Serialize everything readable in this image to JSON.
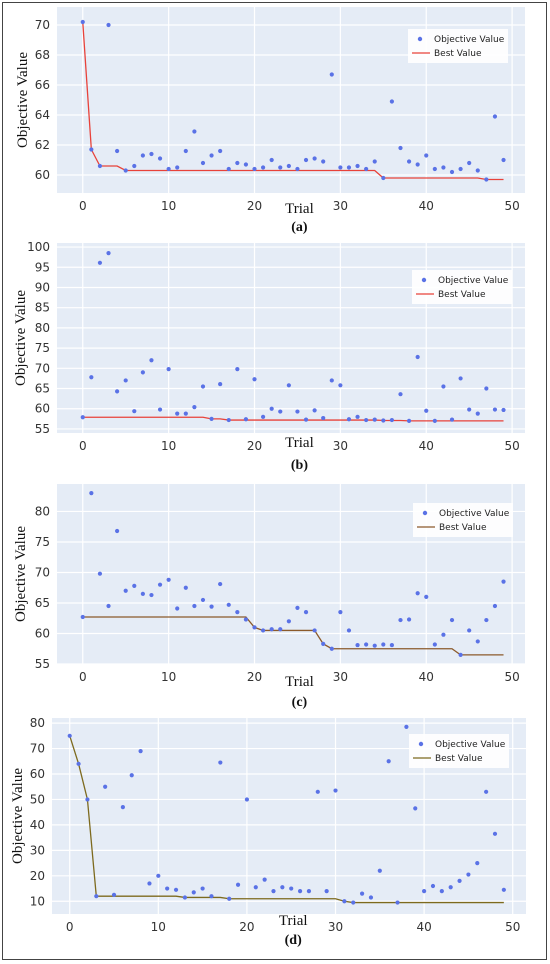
{
  "chart_data": [
    {
      "type": "scatter",
      "caption": "(a)",
      "xlabel": "Trial",
      "ylabel": "Objective Value",
      "xlim": [
        -3,
        51.5
      ],
      "ylim": [
        58.8,
        71.2
      ],
      "xticks": [
        0,
        10,
        20,
        30,
        40,
        50
      ],
      "yticks": [
        60,
        62,
        64,
        66,
        68,
        70
      ],
      "grid": true,
      "legend_position": "top-right",
      "colors": {
        "objective": "#5a72e6",
        "best": "#e8423a"
      },
      "series": [
        {
          "name": "Objective Value",
          "kind": "scatter",
          "x": [
            0,
            1,
            2,
            3,
            4,
            5,
            6,
            7,
            8,
            9,
            10,
            11,
            12,
            13,
            14,
            15,
            16,
            17,
            18,
            19,
            20,
            21,
            22,
            23,
            24,
            25,
            26,
            27,
            28,
            29,
            30,
            31,
            32,
            33,
            34,
            35,
            36,
            37,
            38,
            39,
            40,
            41,
            42,
            43,
            44,
            45,
            46,
            47,
            48,
            49
          ],
          "y": [
            70.2,
            61.7,
            60.6,
            70.0,
            61.6,
            60.3,
            60.6,
            61.3,
            61.4,
            61.1,
            60.4,
            60.5,
            61.6,
            62.9,
            60.8,
            61.3,
            61.6,
            60.4,
            60.8,
            60.7,
            60.4,
            60.5,
            61.0,
            60.5,
            60.6,
            60.4,
            61.0,
            61.1,
            60.9,
            66.7,
            60.5,
            60.5,
            60.6,
            60.4,
            60.9,
            59.8,
            64.9,
            61.8,
            60.9,
            60.7,
            61.3,
            60.4,
            60.5,
            60.2,
            60.4,
            60.8,
            60.3,
            59.7,
            63.9,
            61.0
          ]
        },
        {
          "name": "Best Value",
          "kind": "line",
          "x": [
            0,
            1,
            2,
            3,
            4,
            5,
            6,
            7,
            8,
            9,
            10,
            11,
            12,
            13,
            14,
            15,
            16,
            17,
            18,
            19,
            20,
            21,
            22,
            23,
            24,
            25,
            26,
            27,
            28,
            29,
            30,
            31,
            32,
            33,
            34,
            35,
            36,
            37,
            38,
            39,
            40,
            41,
            42,
            43,
            44,
            45,
            46,
            47,
            48,
            49
          ],
          "y": [
            70.2,
            61.7,
            60.6,
            60.6,
            60.6,
            60.3,
            60.3,
            60.3,
            60.3,
            60.3,
            60.3,
            60.3,
            60.3,
            60.3,
            60.3,
            60.3,
            60.3,
            60.3,
            60.3,
            60.3,
            60.3,
            60.3,
            60.3,
            60.3,
            60.3,
            60.3,
            60.3,
            60.3,
            60.3,
            60.3,
            60.3,
            60.3,
            60.3,
            60.3,
            60.3,
            59.8,
            59.8,
            59.8,
            59.8,
            59.8,
            59.8,
            59.8,
            59.8,
            59.8,
            59.8,
            59.8,
            59.8,
            59.7,
            59.7,
            59.7
          ]
        }
      ]
    },
    {
      "type": "scatter",
      "caption": "(b)",
      "xlabel": "Trial",
      "ylabel": "Objective Value",
      "xlim": [
        -3,
        51.5
      ],
      "ylim": [
        54,
        101
      ],
      "xticks": [
        0,
        10,
        20,
        30,
        40,
        50
      ],
      "yticks": [
        55,
        60,
        65,
        70,
        75,
        80,
        85,
        90,
        95,
        100
      ],
      "grid": true,
      "legend_position": "top-right",
      "colors": {
        "objective": "#5a72e6",
        "best": "#e8423a"
      },
      "series": [
        {
          "name": "Objective Value",
          "kind": "scatter",
          "x": [
            0,
            1,
            2,
            3,
            4,
            5,
            6,
            7,
            8,
            9,
            10,
            11,
            12,
            13,
            14,
            15,
            16,
            17,
            18,
            19,
            20,
            21,
            22,
            23,
            24,
            25,
            26,
            27,
            28,
            29,
            30,
            31,
            32,
            33,
            34,
            35,
            36,
            37,
            38,
            39,
            40,
            41,
            42,
            43,
            44,
            45,
            46,
            47,
            48,
            49
          ],
          "y": [
            57.9,
            67.8,
            96.1,
            98.5,
            64.3,
            67.0,
            59.4,
            69.0,
            72.0,
            59.8,
            69.8,
            58.8,
            58.8,
            60.4,
            65.5,
            57.5,
            66.1,
            57.2,
            69.8,
            57.4,
            67.3,
            58.0,
            60.0,
            59.3,
            65.8,
            59.3,
            57.3,
            59.6,
            57.7,
            67.0,
            65.8,
            57.4,
            58.0,
            57.2,
            57.3,
            57.1,
            57.2,
            63.6,
            57.0,
            72.8,
            59.5,
            57.0,
            65.5,
            57.3,
            67.5,
            59.8,
            58.8,
            65.0,
            59.8,
            59.7
          ]
        },
        {
          "name": "Best Value",
          "kind": "line",
          "x": [
            0,
            1,
            2,
            3,
            4,
            5,
            6,
            7,
            8,
            9,
            10,
            11,
            12,
            13,
            14,
            15,
            16,
            17,
            18,
            19,
            20,
            21,
            22,
            23,
            24,
            25,
            26,
            27,
            28,
            29,
            30,
            31,
            32,
            33,
            34,
            35,
            36,
            37,
            38,
            39,
            40,
            41,
            42,
            43,
            44,
            45,
            46,
            47,
            48,
            49
          ],
          "y": [
            57.9,
            57.9,
            57.9,
            57.9,
            57.9,
            57.9,
            57.9,
            57.9,
            57.9,
            57.9,
            57.9,
            57.9,
            57.9,
            57.9,
            57.9,
            57.5,
            57.5,
            57.2,
            57.2,
            57.2,
            57.2,
            57.2,
            57.2,
            57.2,
            57.2,
            57.2,
            57.2,
            57.2,
            57.2,
            57.2,
            57.2,
            57.2,
            57.2,
            57.2,
            57.2,
            57.1,
            57.1,
            57.1,
            57.0,
            57.0,
            57.0,
            57.0,
            57.0,
            57.0,
            57.0,
            57.0,
            57.0,
            57.0,
            57.0,
            57.0
          ]
        }
      ]
    },
    {
      "type": "scatter",
      "caption": "(c)",
      "xlabel": "Trial",
      "ylabel": "Objective Value",
      "xlim": [
        -3,
        51.5
      ],
      "ylim": [
        55,
        84.5
      ],
      "xticks": [
        0,
        10,
        20,
        30,
        40,
        50
      ],
      "yticks": [
        55,
        60,
        65,
        70,
        75,
        80
      ],
      "grid": true,
      "legend_position": "top-right",
      "colors": {
        "objective": "#5a72e6",
        "best": "#8b5a2b"
      },
      "series": [
        {
          "name": "Objective Value",
          "kind": "scatter",
          "x": [
            0,
            1,
            2,
            3,
            4,
            5,
            6,
            7,
            8,
            9,
            10,
            11,
            12,
            13,
            14,
            15,
            16,
            17,
            18,
            19,
            20,
            21,
            22,
            23,
            24,
            25,
            26,
            27,
            28,
            29,
            30,
            31,
            32,
            33,
            34,
            35,
            36,
            37,
            38,
            39,
            40,
            41,
            42,
            43,
            44,
            45,
            46,
            47,
            48,
            49
          ],
          "y": [
            62.7,
            83.0,
            69.8,
            64.5,
            76.8,
            67.0,
            67.8,
            66.5,
            66.3,
            68.0,
            68.8,
            64.1,
            67.5,
            64.5,
            65.5,
            64.4,
            68.1,
            64.7,
            63.5,
            62.3,
            61.0,
            60.5,
            60.7,
            60.7,
            62.0,
            64.2,
            63.5,
            60.5,
            58.3,
            57.5,
            63.5,
            60.5,
            58.1,
            58.2,
            58.0,
            58.2,
            58.1,
            62.2,
            62.3,
            66.6,
            66.0,
            58.2,
            59.8,
            62.2,
            56.5,
            60.5,
            58.7,
            62.2,
            64.5,
            68.5
          ]
        },
        {
          "name": "Best Value",
          "kind": "line",
          "x": [
            0,
            1,
            2,
            3,
            4,
            5,
            6,
            7,
            8,
            9,
            10,
            11,
            12,
            13,
            14,
            15,
            16,
            17,
            18,
            19,
            20,
            21,
            22,
            23,
            24,
            25,
            26,
            27,
            28,
            29,
            30,
            31,
            32,
            33,
            34,
            35,
            36,
            37,
            38,
            39,
            40,
            41,
            42,
            43,
            44,
            45,
            46,
            47,
            48,
            49
          ],
          "y": [
            62.7,
            62.7,
            62.7,
            62.7,
            62.7,
            62.7,
            62.7,
            62.7,
            62.7,
            62.7,
            62.7,
            62.7,
            62.7,
            62.7,
            62.7,
            62.7,
            62.7,
            62.7,
            62.7,
            62.7,
            61.0,
            60.5,
            60.5,
            60.5,
            60.5,
            60.5,
            60.5,
            60.5,
            58.3,
            57.5,
            57.5,
            57.5,
            57.5,
            57.5,
            57.5,
            57.5,
            57.5,
            57.5,
            57.5,
            57.5,
            57.5,
            57.5,
            57.5,
            57.5,
            56.5,
            56.5,
            56.5,
            56.5,
            56.5,
            56.5
          ]
        }
      ]
    },
    {
      "type": "scatter",
      "caption": "(d)",
      "xlabel": "Trial",
      "ylabel": "Objective Value",
      "xlim": [
        -2,
        51.5
      ],
      "ylim": [
        5,
        82
      ],
      "xticks": [
        0,
        10,
        20,
        30,
        40,
        50
      ],
      "yticks": [
        10,
        20,
        30,
        40,
        50,
        60,
        70,
        80
      ],
      "grid": true,
      "legend_position": "top-right",
      "colors": {
        "objective": "#5a72e6",
        "best": "#7d6a1e"
      },
      "series": [
        {
          "name": "Objective Value",
          "kind": "scatter",
          "x": [
            0,
            1,
            2,
            3,
            4,
            5,
            6,
            7,
            8,
            9,
            10,
            11,
            12,
            13,
            14,
            15,
            16,
            17,
            18,
            19,
            20,
            21,
            22,
            23,
            24,
            25,
            26,
            27,
            28,
            29,
            30,
            31,
            32,
            33,
            34,
            35,
            36,
            37,
            38,
            39,
            40,
            41,
            42,
            43,
            44,
            45,
            46,
            47,
            48,
            49
          ],
          "y": [
            75,
            64,
            50,
            12,
            55,
            12.5,
            47,
            59.5,
            69,
            17,
            20,
            15,
            14.5,
            11.5,
            13.5,
            15,
            12,
            64.5,
            11,
            16.5,
            50,
            15.5,
            18.5,
            14,
            15.5,
            15,
            14,
            14,
            53,
            14,
            53.5,
            10,
            9.5,
            13,
            11.5,
            22,
            65,
            9.5,
            78.5,
            46.5,
            14,
            16,
            14,
            15.5,
            18,
            20.5,
            25,
            53,
            36.5,
            14.5
          ]
        },
        {
          "name": "Best Value",
          "kind": "line",
          "x": [
            0,
            1,
            2,
            3,
            4,
            5,
            6,
            7,
            8,
            9,
            10,
            11,
            12,
            13,
            14,
            15,
            16,
            17,
            18,
            19,
            20,
            21,
            22,
            23,
            24,
            25,
            26,
            27,
            28,
            29,
            30,
            31,
            32,
            33,
            34,
            35,
            36,
            37,
            38,
            39,
            40,
            41,
            42,
            43,
            44,
            45,
            46,
            47,
            48,
            49
          ],
          "y": [
            75,
            64,
            50,
            12,
            12,
            12,
            12,
            12,
            12,
            12,
            12,
            12,
            12,
            11.5,
            11.5,
            11.5,
            11.5,
            11.5,
            11,
            11,
            11,
            11,
            11,
            11,
            11,
            11,
            11,
            11,
            11,
            11,
            11,
            10,
            9.5,
            9.5,
            9.5,
            9.5,
            9.5,
            9.5,
            9.5,
            9.5,
            9.5,
            9.5,
            9.5,
            9.5,
            9.5,
            9.5,
            9.5,
            9.5,
            9.5,
            9.5
          ]
        }
      ]
    }
  ]
}
